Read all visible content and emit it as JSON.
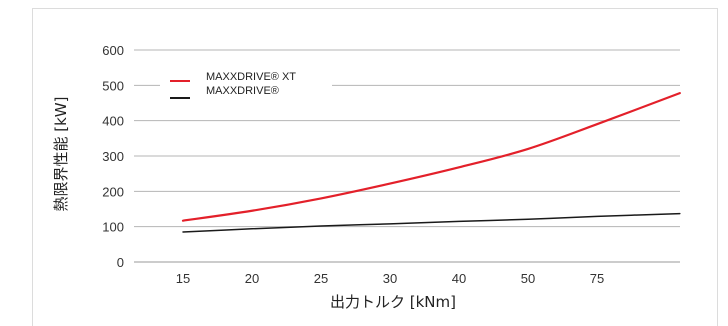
{
  "chart_data": {
    "type": "line",
    "xlabel": "出力トルク [kNm]",
    "ylabel": "熱限界性能 [kW]",
    "categories": [
      "15",
      "20",
      "25",
      "30",
      "40",
      "50",
      "75"
    ],
    "ylim": [
      0,
      600
    ],
    "yticks": [
      0,
      100,
      200,
      300,
      400,
      500,
      600
    ],
    "grid": "horizontal",
    "legend_position": "top-left",
    "series": [
      {
        "name": "MAXXDRIVE® XT",
        "color": "#e3202a",
        "points": [
          [
            0,
            117
          ],
          [
            1,
            145
          ],
          [
            2,
            180
          ],
          [
            3,
            222
          ],
          [
            4,
            268
          ],
          [
            5,
            320
          ],
          [
            6,
            390
          ],
          [
            7.2,
            478
          ]
        ]
      },
      {
        "name": "MAXXDRIVE®",
        "color": "#1a1a1a",
        "points": [
          [
            0,
            85
          ],
          [
            1,
            94
          ],
          [
            2,
            102
          ],
          [
            3,
            108
          ],
          [
            4,
            115
          ],
          [
            5,
            121
          ],
          [
            6,
            129
          ],
          [
            7.2,
            137
          ]
        ]
      }
    ]
  }
}
